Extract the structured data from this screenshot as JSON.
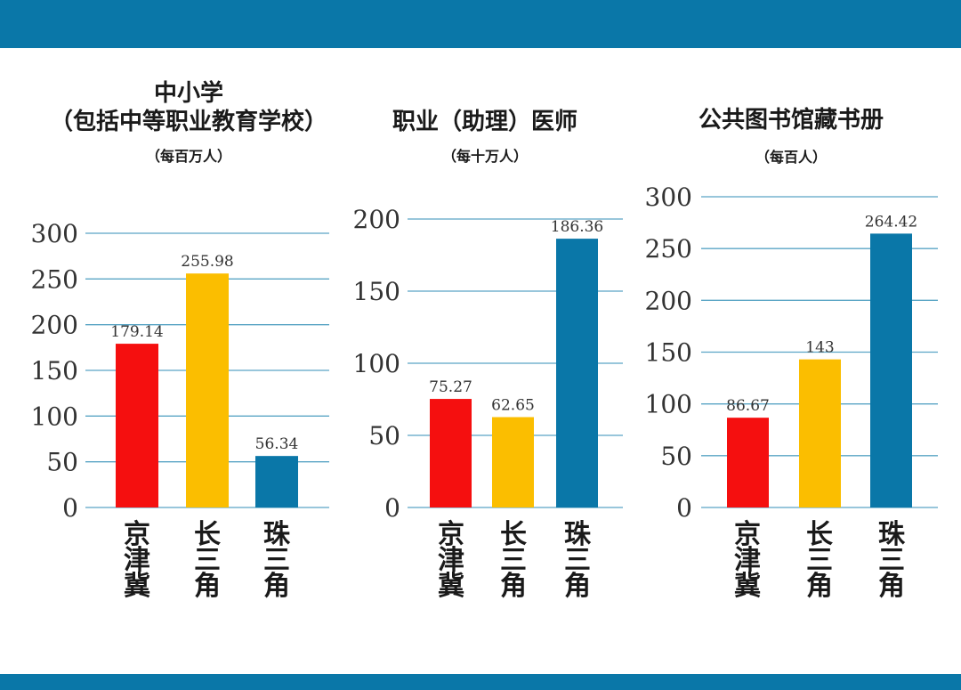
{
  "colors": {
    "band": "#0a77a8",
    "grid": "#5aa5c5",
    "bar_colors": [
      "#f50f0f",
      "#fbbe00",
      "#0a77a8"
    ]
  },
  "chart_data": [
    {
      "type": "bar",
      "title_lines": [
        "中小学",
        "（包括中等职业教育学校）"
      ],
      "subtitle": "（每百万人）",
      "categories": [
        "京津冀",
        "长三角",
        "珠三角"
      ],
      "values": [
        179.14,
        255.98,
        56.34
      ],
      "value_labels": [
        "179.14",
        "255.98",
        "56.34"
      ],
      "ticks": [
        0,
        50,
        100,
        150,
        200,
        250,
        300
      ],
      "ylim": [
        0,
        300
      ],
      "grid": true
    },
    {
      "type": "bar",
      "title_lines": [
        "职业（助理）医师"
      ],
      "subtitle": "（每十万人）",
      "categories": [
        "京津冀",
        "长三角",
        "珠三角"
      ],
      "values": [
        75.27,
        62.65,
        186.36
      ],
      "value_labels": [
        "75.27",
        "62.65",
        "186.36"
      ],
      "ticks": [
        0,
        50,
        100,
        150,
        200
      ],
      "ylim": [
        0,
        200
      ],
      "grid": true
    },
    {
      "type": "bar",
      "title_lines": [
        "公共图书馆藏书册"
      ],
      "subtitle": "（每百人）",
      "categories": [
        "京津冀",
        "长三角",
        "珠三角"
      ],
      "values": [
        86.67,
        143,
        264.42
      ],
      "value_labels": [
        "86.67",
        "143",
        "264.42"
      ],
      "ticks": [
        0,
        50,
        100,
        150,
        200,
        250,
        300
      ],
      "ylim": [
        0,
        300
      ],
      "grid": true
    }
  ]
}
